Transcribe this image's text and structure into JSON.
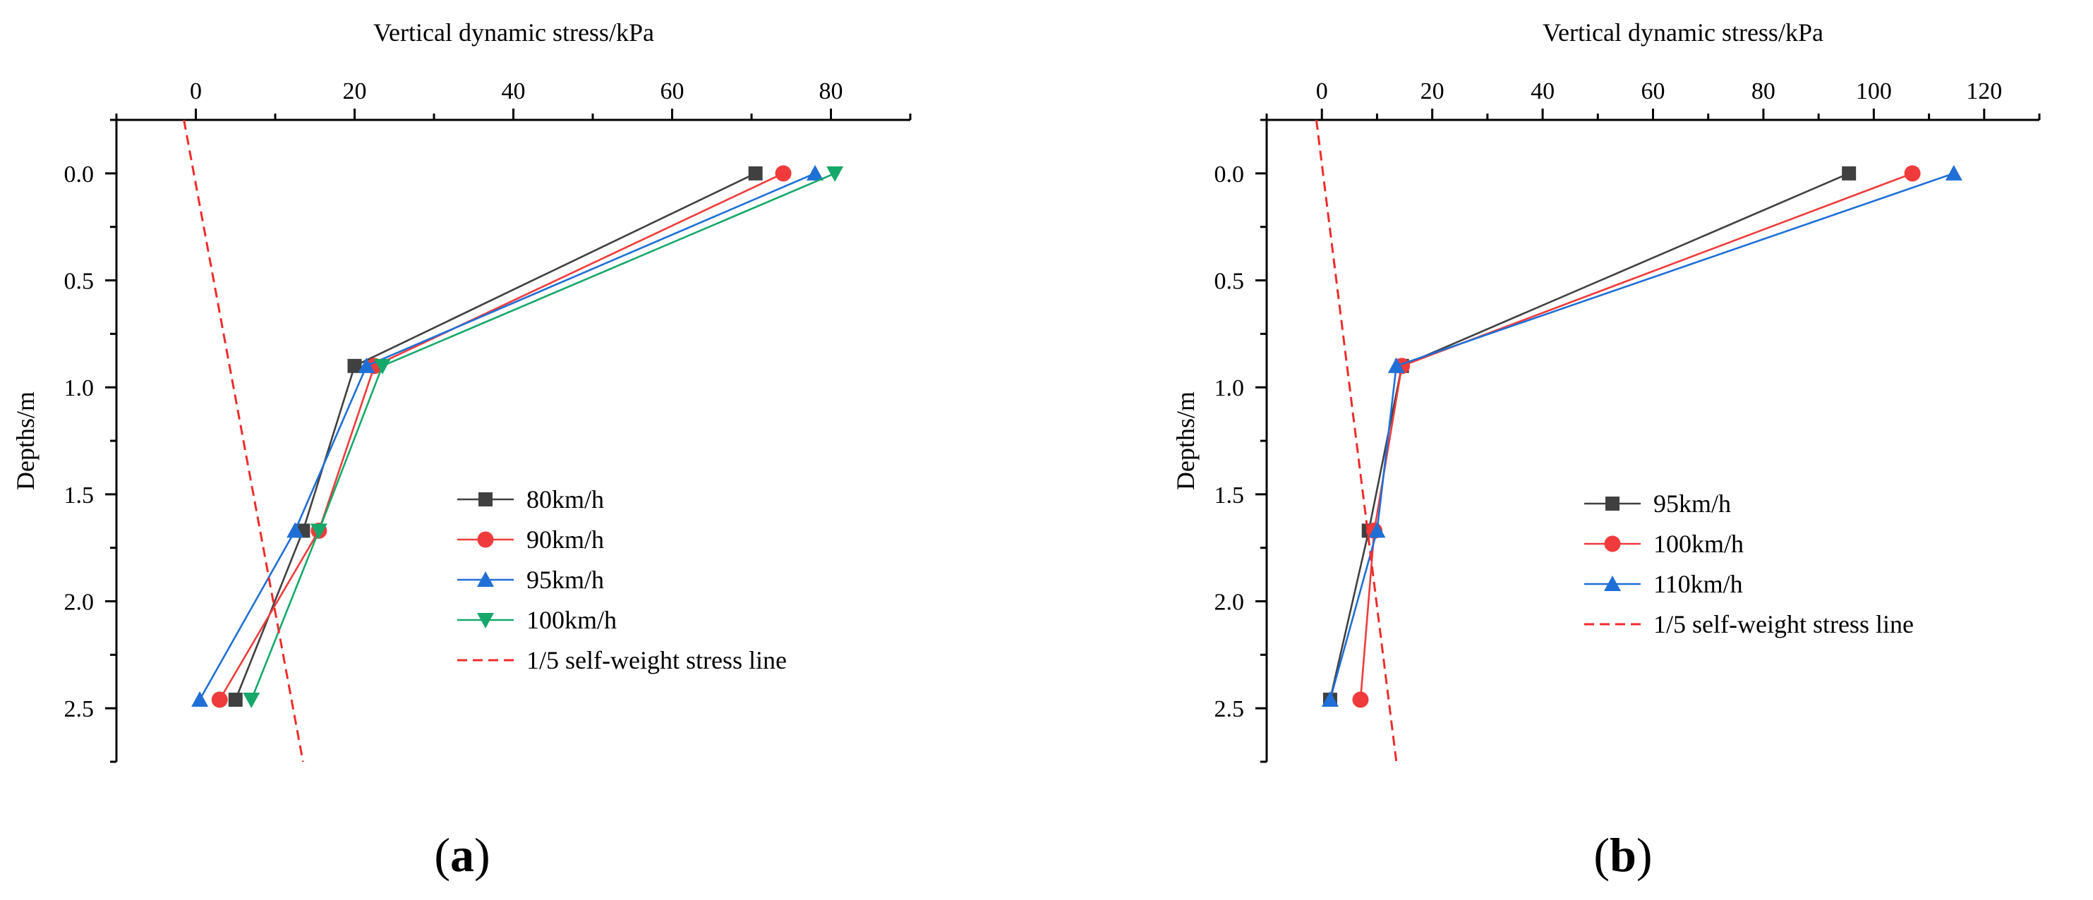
{
  "chart_data": [
    {
      "type": "line",
      "panel_label": {
        "open": "(",
        "letter": "a",
        "close": ")"
      },
      "title": "",
      "xlabel": "Vertical dynamic stress/kPa",
      "ylabel": "Depths/m",
      "xlim": [
        -10,
        90
      ],
      "ylim": [
        2.75,
        -0.25
      ],
      "x_ticks": [
        0,
        20,
        40,
        60,
        80
      ],
      "x_tick_labels": [
        "0",
        "20",
        "40",
        "60",
        "80"
      ],
      "y_ticks": [
        0.0,
        0.5,
        1.0,
        1.5,
        2.0,
        2.5
      ],
      "y_tick_labels": [
        "0.0",
        "0.5",
        "1.0",
        "1.5",
        "2.0",
        "2.5"
      ],
      "legend_position": "center-right",
      "series": [
        {
          "name": "80km/h",
          "color": "#404040",
          "marker": "square",
          "depth": [
            0,
            0.9,
            1.67,
            2.46
          ],
          "stress": [
            70.5,
            20.0,
            13.5,
            5.0
          ]
        },
        {
          "name": "90km/h",
          "color": "#ef3b3b",
          "marker": "circle",
          "depth": [
            0,
            0.9,
            1.67,
            2.46
          ],
          "stress": [
            74.0,
            22.5,
            15.5,
            3.0
          ]
        },
        {
          "name": "95km/h",
          "color": "#1f6fd6",
          "marker": "triangle-up",
          "depth": [
            0,
            0.9,
            1.67,
            2.46
          ],
          "stress": [
            78.0,
            21.5,
            12.5,
            0.5
          ]
        },
        {
          "name": "100km/h",
          "color": "#16a86a",
          "marker": "triangle-down",
          "depth": [
            0,
            0.9,
            1.67,
            2.46
          ],
          "stress": [
            80.5,
            23.5,
            15.5,
            7.0
          ]
        },
        {
          "name": "1/5 self-weight stress line",
          "color": "#ef2b2b",
          "marker": "none",
          "dashed": true,
          "depth": [
            -0.25,
            2.75
          ],
          "stress": [
            -1.5,
            13.5
          ]
        }
      ]
    },
    {
      "type": "line",
      "panel_label": {
        "open": "(",
        "letter": "b",
        "close": ")"
      },
      "title": "",
      "xlabel": "Vertical dynamic stress/kPa",
      "ylabel": "Depths/m",
      "xlim": [
        -10,
        130
      ],
      "ylim": [
        2.75,
        -0.25
      ],
      "x_ticks": [
        0,
        20,
        40,
        60,
        80,
        100,
        120
      ],
      "x_tick_labels": [
        "0",
        "20",
        "40",
        "60",
        "80",
        "100",
        "120"
      ],
      "y_ticks": [
        0.0,
        0.5,
        1.0,
        1.5,
        2.0,
        2.5
      ],
      "y_tick_labels": [
        "0.0",
        "0.5",
        "1.0",
        "1.5",
        "2.0",
        "2.5"
      ],
      "legend_position": "center-right",
      "series": [
        {
          "name": "95km/h",
          "color": "#404040",
          "marker": "square",
          "depth": [
            0,
            0.9,
            1.67,
            2.46
          ],
          "stress": [
            95.5,
            14.5,
            8.5,
            1.5
          ]
        },
        {
          "name": "100km/h",
          "color": "#ef3b3b",
          "marker": "circle",
          "depth": [
            0,
            0.9,
            1.67,
            2.46
          ],
          "stress": [
            107.0,
            14.5,
            9.5,
            7.0
          ]
        },
        {
          "name": "110km/h",
          "color": "#1f6fd6",
          "marker": "triangle-up",
          "depth": [
            0,
            0.9,
            1.67,
            2.46
          ],
          "stress": [
            114.5,
            13.5,
            10.0,
            1.5
          ]
        },
        {
          "name": "1/5 self-weight stress line",
          "color": "#ef2b2b",
          "marker": "none",
          "dashed": true,
          "depth": [
            -0.25,
            2.75
          ],
          "stress": [
            -1.0,
            13.5
          ]
        }
      ]
    }
  ]
}
